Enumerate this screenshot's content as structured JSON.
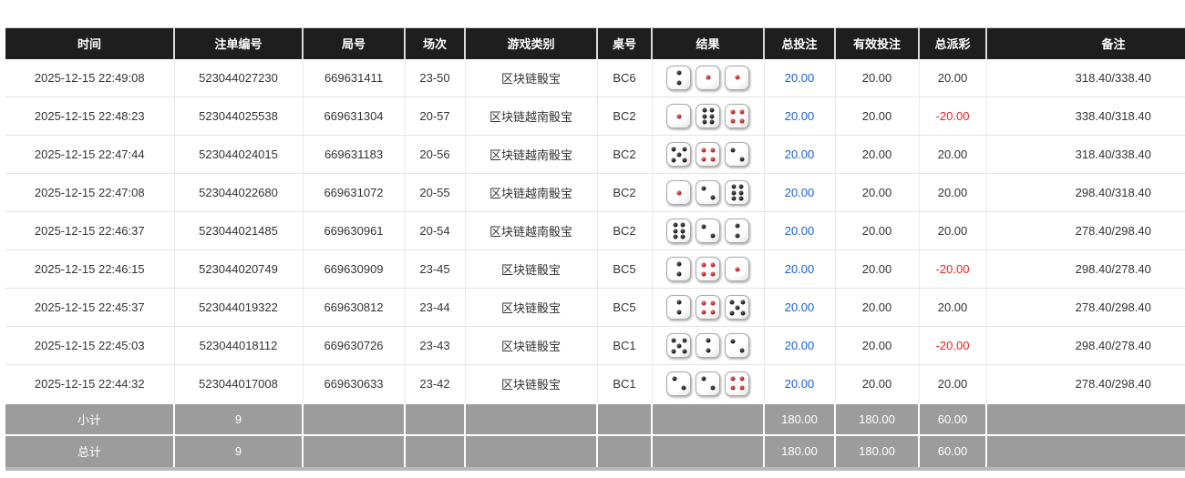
{
  "colors": {
    "header_bg": "#1e1e1e",
    "header_text": "#ffffff",
    "row_text": "#333333",
    "link_blue": "#1a5fd6",
    "negative_red": "#e92323",
    "summary_bg": "#9c9c9c",
    "summary_text": "#ffffff"
  },
  "table": {
    "columns": [
      {
        "key": "time",
        "label": "时间"
      },
      {
        "key": "bet_id",
        "label": "注单编号"
      },
      {
        "key": "round_id",
        "label": "局号"
      },
      {
        "key": "session",
        "label": "场次"
      },
      {
        "key": "game",
        "label": "游戏类别"
      },
      {
        "key": "table_no",
        "label": "桌号"
      },
      {
        "key": "result",
        "label": "结果"
      },
      {
        "key": "total_bet",
        "label": "总投注"
      },
      {
        "key": "valid_bet",
        "label": "有效投注"
      },
      {
        "key": "payout",
        "label": "总派彩"
      },
      {
        "key": "remark",
        "label": "备注"
      }
    ],
    "rows": [
      {
        "time": "2025-12-15 22:49:08",
        "bet_id": "523044027230",
        "round_id": "669631411",
        "session": "23-50",
        "game": "区块链骰宝",
        "table_no": "BC6",
        "dice": [
          "2v",
          "1",
          "1"
        ],
        "total_bet": "20.00",
        "valid_bet": "20.00",
        "payout": "20.00",
        "remark": "318.40/338.40"
      },
      {
        "time": "2025-12-15 22:48:23",
        "bet_id": "523044025538",
        "round_id": "669631304",
        "session": "20-57",
        "game": "区块链越南骰宝",
        "table_no": "BC2",
        "dice": [
          "1",
          "6",
          "4"
        ],
        "total_bet": "20.00",
        "valid_bet": "20.00",
        "payout": "-20.00",
        "remark": "338.40/318.40"
      },
      {
        "time": "2025-12-15 22:47:44",
        "bet_id": "523044024015",
        "round_id": "669631183",
        "session": "20-56",
        "game": "区块链越南骰宝",
        "table_no": "BC2",
        "dice": [
          "5",
          "4",
          "2d"
        ],
        "total_bet": "20.00",
        "valid_bet": "20.00",
        "payout": "20.00",
        "remark": "318.40/338.40"
      },
      {
        "time": "2025-12-15 22:47:08",
        "bet_id": "523044022680",
        "round_id": "669631072",
        "session": "20-55",
        "game": "区块链越南骰宝",
        "table_no": "BC2",
        "dice": [
          "1",
          "2d",
          "6"
        ],
        "total_bet": "20.00",
        "valid_bet": "20.00",
        "payout": "20.00",
        "remark": "298.40/318.40"
      },
      {
        "time": "2025-12-15 22:46:37",
        "bet_id": "523044021485",
        "round_id": "669630961",
        "session": "20-54",
        "game": "区块链越南骰宝",
        "table_no": "BC2",
        "dice": [
          "6",
          "2d",
          "2v"
        ],
        "total_bet": "20.00",
        "valid_bet": "20.00",
        "payout": "20.00",
        "remark": "278.40/298.40"
      },
      {
        "time": "2025-12-15 22:46:15",
        "bet_id": "523044020749",
        "round_id": "669630909",
        "session": "23-45",
        "game": "区块链骰宝",
        "table_no": "BC5",
        "dice": [
          "2v",
          "4",
          "1"
        ],
        "total_bet": "20.00",
        "valid_bet": "20.00",
        "payout": "-20.00",
        "remark": "298.40/278.40"
      },
      {
        "time": "2025-12-15 22:45:37",
        "bet_id": "523044019322",
        "round_id": "669630812",
        "session": "23-44",
        "game": "区块链骰宝",
        "table_no": "BC5",
        "dice": [
          "2v",
          "4",
          "5"
        ],
        "total_bet": "20.00",
        "valid_bet": "20.00",
        "payout": "20.00",
        "remark": "278.40/298.40"
      },
      {
        "time": "2025-12-15 22:45:03",
        "bet_id": "523044018112",
        "round_id": "669630726",
        "session": "23-43",
        "game": "区块链骰宝",
        "table_no": "BC1",
        "dice": [
          "5",
          "2v",
          "2d"
        ],
        "total_bet": "20.00",
        "valid_bet": "20.00",
        "payout": "-20.00",
        "remark": "298.40/278.40"
      },
      {
        "time": "2025-12-15 22:44:32",
        "bet_id": "523044017008",
        "round_id": "669630633",
        "session": "23-42",
        "game": "区块链骰宝",
        "table_no": "BC1",
        "dice": [
          "2d",
          "2d",
          "4"
        ],
        "total_bet": "20.00",
        "valid_bet": "20.00",
        "payout": "20.00",
        "remark": "278.40/298.40"
      }
    ],
    "summary_rows": [
      {
        "label": "小计",
        "count": "9",
        "total_bet": "180.00",
        "valid_bet": "180.00",
        "payout": "60.00"
      },
      {
        "label": "总计",
        "count": "9",
        "total_bet": "180.00",
        "valid_bet": "180.00",
        "payout": "60.00"
      }
    ]
  },
  "dice_legend": {
    "red_pip_values": [
      "1",
      "4"
    ]
  }
}
